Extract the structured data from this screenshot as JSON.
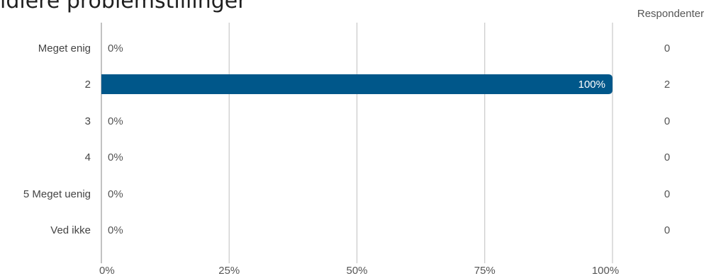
{
  "title": "idiere problemstillinger",
  "chart_data": {
    "type": "bar",
    "orientation": "horizontal",
    "categories": [
      "Meget enig",
      "2",
      "3",
      "4",
      "5 Meget uenig",
      "Ved ikke"
    ],
    "values": [
      0,
      100,
      0,
      0,
      0,
      0
    ],
    "value_labels": [
      "0%",
      "100%",
      "0%",
      "0%",
      "0%",
      "0%"
    ],
    "respondents_header": "Respondenter",
    "respondents": [
      "0",
      "2",
      "0",
      "0",
      "0",
      "0"
    ],
    "xlim": [
      0,
      100
    ],
    "xticks": [
      0,
      25,
      50,
      75,
      100
    ],
    "xtick_labels": [
      "0%",
      "25%",
      "50%",
      "75%",
      "100%"
    ],
    "grid": true,
    "bar_color": "#00578a"
  }
}
